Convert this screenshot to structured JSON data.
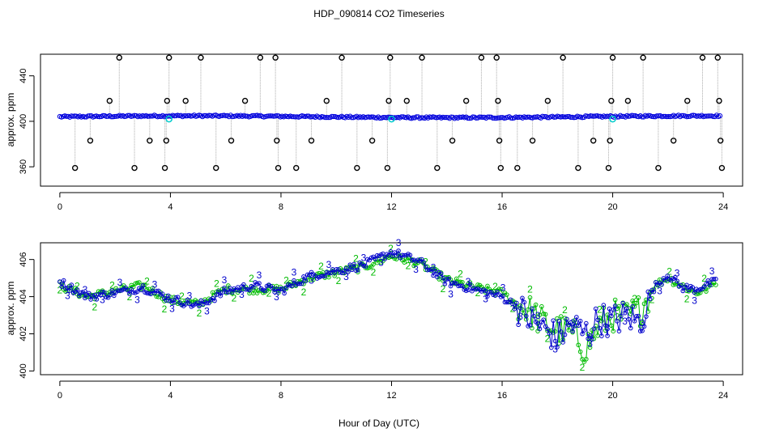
{
  "title": "HDP_090814  CO2 Timeseries",
  "xlabel": "Hour of Day (UTC)",
  "chart_data": [
    {
      "type": "scatter",
      "panel": "top",
      "ylabel": "approx. ppm",
      "xlim": [
        -0.7,
        24.7
      ],
      "ylim": [
        343,
        459
      ],
      "xticks": [
        0,
        4,
        8,
        12,
        16,
        20,
        24
      ],
      "yticks": [
        360,
        400,
        440
      ],
      "baseline_ppm": 404,
      "colors": {
        "main": "#0000dd",
        "spike": "#000000",
        "connector": "#aaaaaa",
        "marker": "#00cccc"
      },
      "spikes": [
        {
          "x": 0.55,
          "y": 359
        },
        {
          "x": 1.1,
          "y": 383
        },
        {
          "x": 1.8,
          "y": 418
        },
        {
          "x": 2.15,
          "y": 456
        },
        {
          "x": 2.7,
          "y": 359
        },
        {
          "x": 3.25,
          "y": 383
        },
        {
          "x": 3.8,
          "y": 359
        },
        {
          "x": 3.85,
          "y": 383
        },
        {
          "x": 3.88,
          "y": 418
        },
        {
          "x": 3.95,
          "y": 456
        },
        {
          "x": 4.55,
          "y": 418
        },
        {
          "x": 5.1,
          "y": 456
        },
        {
          "x": 5.65,
          "y": 359
        },
        {
          "x": 6.2,
          "y": 383
        },
        {
          "x": 6.7,
          "y": 418
        },
        {
          "x": 7.25,
          "y": 456
        },
        {
          "x": 7.8,
          "y": 456
        },
        {
          "x": 7.85,
          "y": 383
        },
        {
          "x": 7.9,
          "y": 359
        },
        {
          "x": 8.55,
          "y": 359
        },
        {
          "x": 9.1,
          "y": 383
        },
        {
          "x": 9.65,
          "y": 418
        },
        {
          "x": 10.2,
          "y": 456
        },
        {
          "x": 10.75,
          "y": 359
        },
        {
          "x": 11.3,
          "y": 383
        },
        {
          "x": 11.85,
          "y": 359
        },
        {
          "x": 11.9,
          "y": 418
        },
        {
          "x": 11.95,
          "y": 456
        },
        {
          "x": 12.55,
          "y": 418
        },
        {
          "x": 13.1,
          "y": 456
        },
        {
          "x": 13.65,
          "y": 359
        },
        {
          "x": 14.2,
          "y": 383
        },
        {
          "x": 14.7,
          "y": 418
        },
        {
          "x": 15.25,
          "y": 456
        },
        {
          "x": 15.8,
          "y": 456
        },
        {
          "x": 15.85,
          "y": 418
        },
        {
          "x": 15.9,
          "y": 383
        },
        {
          "x": 15.95,
          "y": 359
        },
        {
          "x": 16.55,
          "y": 359
        },
        {
          "x": 17.1,
          "y": 383
        },
        {
          "x": 17.65,
          "y": 418
        },
        {
          "x": 18.2,
          "y": 456
        },
        {
          "x": 18.75,
          "y": 359
        },
        {
          "x": 19.3,
          "y": 383
        },
        {
          "x": 19.85,
          "y": 359
        },
        {
          "x": 19.9,
          "y": 383
        },
        {
          "x": 19.95,
          "y": 418
        },
        {
          "x": 20.0,
          "y": 456
        },
        {
          "x": 20.55,
          "y": 418
        },
        {
          "x": 21.1,
          "y": 456
        },
        {
          "x": 21.65,
          "y": 359
        },
        {
          "x": 22.2,
          "y": 383
        },
        {
          "x": 22.7,
          "y": 418
        },
        {
          "x": 23.25,
          "y": 456
        },
        {
          "x": 23.8,
          "y": 456
        },
        {
          "x": 23.85,
          "y": 418
        },
        {
          "x": 23.9,
          "y": 383
        },
        {
          "x": 23.95,
          "y": 359
        }
      ],
      "highlight_points": [
        {
          "x": 3.95,
          "y": 402
        },
        {
          "x": 12.0,
          "y": 402
        },
        {
          "x": 20.0,
          "y": 402
        }
      ]
    },
    {
      "type": "line",
      "panel": "bottom",
      "ylabel": "approx. ppm",
      "xlim": [
        -0.7,
        24.7
      ],
      "ylim": [
        399.8,
        406.9
      ],
      "xticks": [
        0,
        4,
        8,
        12,
        16,
        20,
        24
      ],
      "yticks": [
        400,
        402,
        404,
        406
      ],
      "series": [
        {
          "name": "2",
          "color": "#00bb00",
          "x": [
            0.0,
            1.0,
            2.0,
            3.0,
            4.0,
            5.0,
            6.0,
            7.0,
            8.0,
            9.0,
            10.0,
            11.0,
            12.0,
            13.0,
            14.0,
            15.0,
            16.0,
            16.5,
            17.0,
            17.5,
            18.0,
            18.5,
            19.0,
            19.5,
            20.0,
            20.5,
            21.0,
            21.5,
            22.0,
            22.5,
            23.0,
            23.5,
            23.8
          ],
          "y": [
            404.6,
            404.0,
            404.3,
            404.6,
            403.8,
            403.6,
            404.4,
            404.4,
            404.4,
            405.0,
            405.3,
            405.6,
            406.2,
            405.8,
            404.9,
            404.5,
            404.2,
            403.6,
            403.2,
            402.6,
            402.2,
            402.1,
            401.2,
            402.4,
            403.0,
            402.9,
            403.3,
            404.6,
            405.0,
            404.6,
            404.2,
            404.5,
            404.9
          ]
        },
        {
          "name": "3",
          "color": "#0000cc",
          "x": [
            0.0,
            1.0,
            2.0,
            3.0,
            4.0,
            5.0,
            6.0,
            7.0,
            8.0,
            9.0,
            10.0,
            11.0,
            12.0,
            13.0,
            14.0,
            15.0,
            16.0,
            16.5,
            17.0,
            17.5,
            18.0,
            18.5,
            19.0,
            19.5,
            20.0,
            20.5,
            21.0,
            21.5,
            22.0,
            22.5,
            23.0,
            23.5,
            23.8
          ],
          "y": [
            404.8,
            404.0,
            404.2,
            404.5,
            403.9,
            403.5,
            404.3,
            404.6,
            404.3,
            405.1,
            405.4,
            405.7,
            406.4,
            405.9,
            404.8,
            404.4,
            404.0,
            403.5,
            402.8,
            402.3,
            401.8,
            402.5,
            402.0,
            402.8,
            402.7,
            403.0,
            402.6,
            404.5,
            405.2,
            404.5,
            404.4,
            404.7,
            404.8
          ]
        }
      ]
    }
  ]
}
